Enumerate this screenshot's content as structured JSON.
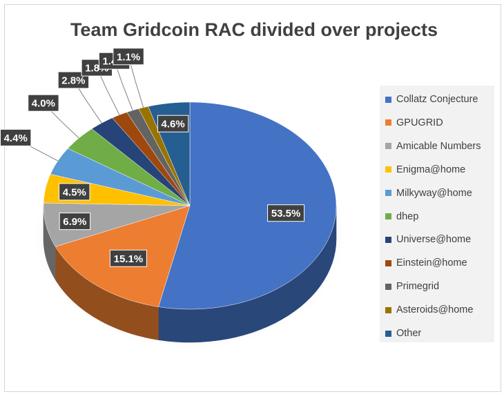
{
  "chart_data": {
    "type": "pie",
    "title": "Team Gridcoin RAC divided over projects",
    "legend_position": "right",
    "slices": [
      {
        "label": "Collatz Conjecture",
        "value": 53.5,
        "display": "53.5%",
        "color": "#4472c4"
      },
      {
        "label": "GPUGRID",
        "value": 15.1,
        "display": "15.1%",
        "color": "#ed7d31"
      },
      {
        "label": "Amicable Numbers",
        "value": 6.9,
        "display": "6.9%",
        "color": "#a5a5a5"
      },
      {
        "label": "Enigma@home",
        "value": 4.5,
        "display": "4.5%",
        "color": "#ffc000"
      },
      {
        "label": "Milkyway@home",
        "value": 4.4,
        "display": "4.4%",
        "color": "#5b9bd5"
      },
      {
        "label": "dhep",
        "value": 4.0,
        "display": "4.0%",
        "color": "#70ad47"
      },
      {
        "label": "Universe@home",
        "value": 2.8,
        "display": "2.8%",
        "color": "#264478"
      },
      {
        "label": "Einstein@home",
        "value": 1.8,
        "display": "1.8%",
        "color": "#9e480e"
      },
      {
        "label": "Primegrid",
        "value": 1.4,
        "display": "1.4%",
        "color": "#636363"
      },
      {
        "label": "Asteroids@home",
        "value": 1.1,
        "display": "1.1%",
        "color": "#997300"
      },
      {
        "label": "Other",
        "value": 4.6,
        "display": "4.6%",
        "color": "#255e91"
      }
    ]
  }
}
